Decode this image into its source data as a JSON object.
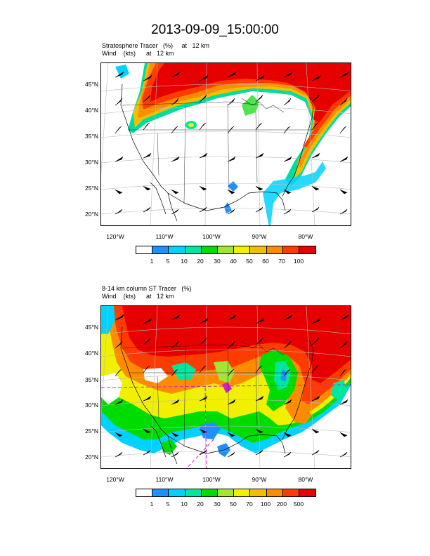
{
  "title": "2013-09-09_15:00:00",
  "panels": [
    {
      "subtitle_line1": "Stratosphere Tracer   (%)     at   12 km",
      "subtitle_line2": "Wind    (kts)      at   12 km",
      "lat_labels": [
        "45°N",
        "40°N",
        "35°N",
        "30°N",
        "25°N",
        "20°N"
      ],
      "lon_labels": [
        "120°W",
        "110°W",
        "100°W",
        "90°W",
        "80°W"
      ],
      "colorbar_labels": [
        "1",
        "5",
        "10",
        "20",
        "30",
        "40",
        "50",
        "60",
        "70",
        "100"
      ]
    },
    {
      "subtitle_line1": "8-14 km column ST Tracer   (%)",
      "subtitle_line2": "Wind    (kts)      at   12 km",
      "lat_labels": [
        "45°N",
        "40°N",
        "35°N",
        "30°N",
        "25°N",
        "20°N"
      ],
      "lon_labels": [
        "120°W",
        "110°W",
        "100°W",
        "90°W",
        "80°W"
      ],
      "colorbar_labels": [
        "1",
        "5",
        "10",
        "20",
        "30",
        "50",
        "70",
        "100",
        "200",
        "500"
      ]
    }
  ],
  "colorbar_colors": [
    "#ffffff",
    "#1e90ff",
    "#00d2ff",
    "#00e6a0",
    "#00dc00",
    "#a0e632",
    "#f0f000",
    "#f0c000",
    "#ff8c00",
    "#ff3c00",
    "#e60000"
  ],
  "colors": {
    "map_line": "#000000",
    "grid": "#bbbbbb",
    "wind_barb": "#000000",
    "dashed_box": "#d020d0"
  }
}
